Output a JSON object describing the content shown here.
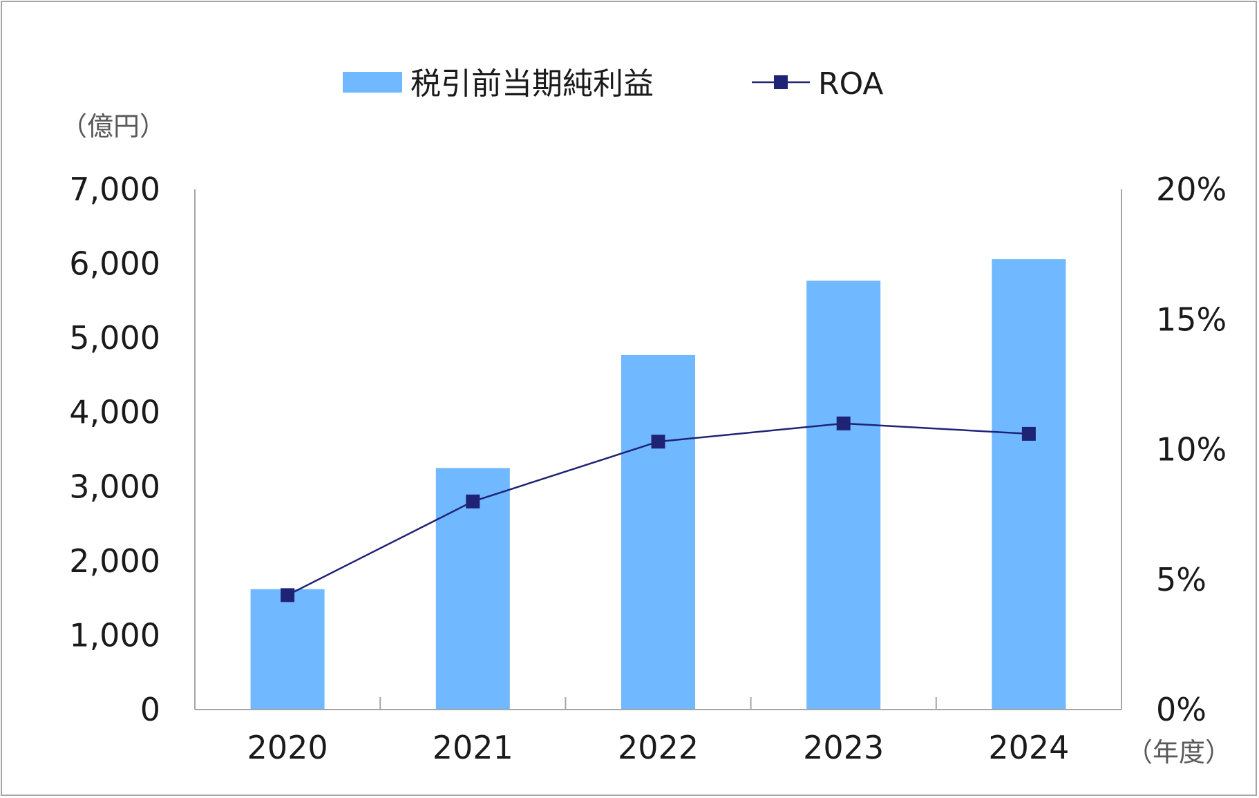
{
  "chart_data": {
    "type": "bar",
    "categories": [
      "2020",
      "2021",
      "2022",
      "2023",
      "2024"
    ],
    "series": [
      {
        "name": "税引前当期純利益",
        "type": "bar",
        "axis": "left",
        "color": "#70b8ff",
        "values": [
          1620,
          3250,
          4770,
          5770,
          6060
        ]
      },
      {
        "name": "ROA",
        "type": "line",
        "axis": "right",
        "color": "#1f2375",
        "marker": "square",
        "values": [
          4.4,
          8.0,
          10.3,
          11.0,
          10.6
        ]
      }
    ],
    "y_left": {
      "unit_label": "（億円）",
      "ylim": [
        0,
        7000
      ],
      "ticks": [
        "0",
        "1,000",
        "2,000",
        "3,000",
        "4,000",
        "5,000",
        "6,000",
        "7,000"
      ],
      "tick_values": [
        0,
        1000,
        2000,
        3000,
        4000,
        5000,
        6000,
        7000
      ]
    },
    "y_right": {
      "ylim": [
        0,
        20
      ],
      "ticks": [
        "0%",
        "5%",
        "10%",
        "15%",
        "20%"
      ],
      "tick_values": [
        0,
        5,
        10,
        15,
        20
      ]
    },
    "x_unit_label": "（年度）",
    "legend_position": "top-center",
    "grid": false
  }
}
